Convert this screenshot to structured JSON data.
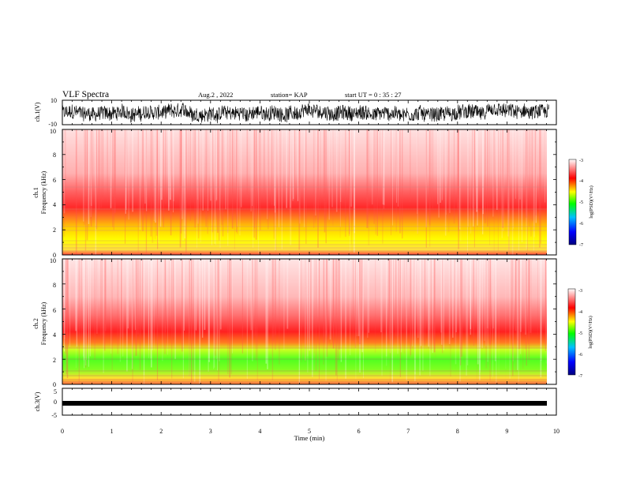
{
  "header": {
    "title": "VLF Spectra",
    "date": "Aug.2 , 2022",
    "station": "station= KAP",
    "start": "start UT = 0 : 35 : 27"
  },
  "chart_data": [
    {
      "type": "line",
      "panel": "ch1-waveform",
      "ylabel": "ch.1(V)",
      "xlim": [
        0,
        10
      ],
      "ylim": [
        -10,
        10
      ],
      "y_tick_labels": [
        "10",
        "-10"
      ],
      "x_extent_min": 9.85,
      "description_of_values": "noisy waveform, range roughly -10 to 8 V"
    },
    {
      "type": "heatmap",
      "panel": "ch1-spectrogram",
      "ylabel_lines": [
        "ch.1",
        "Frequency (kHz)"
      ],
      "xlim": [
        0,
        10
      ],
      "ylim": [
        0,
        10
      ],
      "y_tick_labels": [
        "0",
        "2",
        "4",
        "6",
        "8",
        "10"
      ],
      "colorbar": {
        "label": "log(PSD)(V²/Hz)",
        "range": [
          -7,
          -3
        ],
        "tick_labels": [
          "-3",
          "-4",
          "-5",
          "-6",
          "-7"
        ],
        "colors": [
          "#000080",
          "#0000ff",
          "#00c0ff",
          "#00ff00",
          "#ffff00",
          "#ff0000",
          "#ffffff"
        ]
      },
      "bands": [
        {
          "from_khz": 0,
          "to_khz": 3.5,
          "level": "yellow-red"
        },
        {
          "from_khz": 3.5,
          "to_khz": 5.5,
          "level": "red"
        },
        {
          "from_khz": 5.5,
          "to_khz": 10,
          "level": "light red"
        }
      ]
    },
    {
      "type": "heatmap",
      "panel": "ch2-spectrogram",
      "ylabel_lines": [
        "ch.2",
        "Frequency (kHz)"
      ],
      "xlim": [
        0,
        10
      ],
      "ylim": [
        0,
        10
      ],
      "y_tick_labels": [
        "0",
        "2",
        "4",
        "6",
        "8",
        "10"
      ],
      "colorbar": {
        "label": "log(PSD)(V²/Hz)",
        "range": [
          -7,
          -3
        ],
        "tick_labels": [
          "-3",
          "-4",
          "-5",
          "-6",
          "-7"
        ],
        "colors": [
          "#000080",
          "#0000ff",
          "#00c0ff",
          "#00ff00",
          "#ffff00",
          "#ff0000",
          "#ffffff"
        ]
      },
      "bands": [
        {
          "from_khz": 0,
          "to_khz": 3,
          "level": "green-yellow"
        },
        {
          "from_khz": 3,
          "to_khz": 5,
          "level": "red"
        },
        {
          "from_khz": 5,
          "to_khz": 10,
          "level": "light red"
        }
      ]
    },
    {
      "type": "line",
      "panel": "ch3-waveform",
      "ylabel": "ch.3(V)",
      "xlim": [
        0,
        10
      ],
      "ylim": [
        -5,
        5
      ],
      "y_tick_labels": [
        "5",
        "0",
        "-5"
      ],
      "x_extent_min": 9.85,
      "description_of_values": "flat band near -1 V"
    }
  ],
  "x_axis": {
    "label": "Time (min)",
    "tick_labels": [
      "0",
      "1",
      "2",
      "3",
      "4",
      "5",
      "6",
      "7",
      "8",
      "9",
      "10"
    ]
  }
}
